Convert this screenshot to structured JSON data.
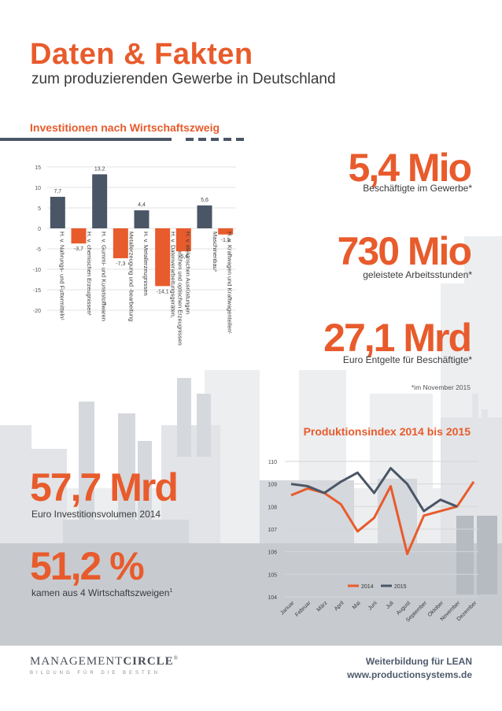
{
  "header": {
    "title": "Daten & Fakten",
    "subtitle": "zum produzierenden Gewerbe in Deutschland"
  },
  "colors": {
    "accent": "#e85b2c",
    "dark_bar": "#4a5666",
    "city_light": "#e9eaec",
    "city_mid": "#d9dbde",
    "city_dark": "#b9bdc3"
  },
  "investment_section": {
    "heading": "Investitionen nach Wirtschaftszweig"
  },
  "stats_right": [
    {
      "value": "5,4 Mio",
      "label": "Beschäftigte im Gewerbe*"
    },
    {
      "value": "730 Mio",
      "label": "geleistete Arbeitsstunden*"
    },
    {
      "value": "27,1 Mrd",
      "label": "Euro Entgelte für Beschäftigte*"
    }
  ],
  "footnote": "*im November 2015",
  "stats_left": [
    {
      "value": "57,7 Mrd",
      "label": "Euro Investitionsvolumen 2014"
    },
    {
      "value": "51,2 %",
      "label": "kamen aus 4 Wirtschaftszweigen",
      "sup": "1"
    }
  ],
  "production_section": {
    "heading": "Produktionsindex 2014 bis 2015"
  },
  "footer": {
    "logo_main_light": "MANAGEMENT",
    "logo_main_bold": "CIRCLE",
    "logo_reg": "®",
    "logo_sub": "BILDUNG FÜR DIE BESTEN",
    "line1": "Weiterbildung für LEAN",
    "line2": "www.productionsystems.de"
  },
  "chart_data": [
    {
      "type": "bar",
      "categories": [
        "H. v. Nahrungs- und Futtermitteln¹",
        "H. v. chemischen Erzeugnissen¹",
        "H. v. Gummi- und Kunststoffwaren",
        "Metallerzeugung und -bearbeitung",
        "H. v. Metallerzeugnissen",
        "H. v. Datenverarbeitungsgeräten, elektronischen und optischen Erzeugnissen",
        "H. v. elektrischen Ausrüstungen",
        "Maschinenbau¹",
        "H. v. Kraftwagen und Kraftwagenteilen¹"
      ],
      "values": [
        7.7,
        -3.7,
        13.2,
        -7.3,
        4.4,
        -14.1,
        -5.6,
        5.6,
        -1.5
      ],
      "value_labels": [
        "7,7",
        "-3,7",
        "13,2",
        "-7,3",
        "4,4",
        "-14,1",
        "-5,6",
        "5,6",
        "-1,5"
      ],
      "colors": [
        "#4a5666",
        "#e85b2c",
        "#4a5666",
        "#e85b2c",
        "#4a5666",
        "#e85b2c",
        "#e85b2c",
        "#4a5666",
        "#e85b2c"
      ],
      "yticks": [
        15,
        10,
        5,
        0,
        -5,
        -10,
        -15,
        -20
      ],
      "ylim": [
        -20,
        15
      ],
      "grid": true
    },
    {
      "type": "line",
      "categories": [
        "Januar",
        "Februar",
        "März",
        "April",
        "Mai",
        "Juni",
        "Juli",
        "August",
        "September",
        "Oktober",
        "November",
        "Dezember"
      ],
      "series": [
        {
          "name": "2014",
          "color": "#e85b2c",
          "values": [
            108.5,
            108.8,
            108.6,
            108.1,
            106.9,
            107.5,
            108.9,
            105.9,
            107.6,
            107.8,
            108.0,
            109.1
          ]
        },
        {
          "name": "2015",
          "color": "#4a5666",
          "values": [
            109.0,
            108.9,
            108.6,
            109.1,
            109.5,
            108.6,
            109.7,
            109.0,
            107.8,
            108.3,
            108.0,
            null
          ]
        }
      ],
      "yticks": [
        110,
        109,
        108,
        107,
        106,
        105,
        104
      ],
      "ylim": [
        104,
        110
      ],
      "grid": true,
      "legend": "bottom"
    }
  ]
}
